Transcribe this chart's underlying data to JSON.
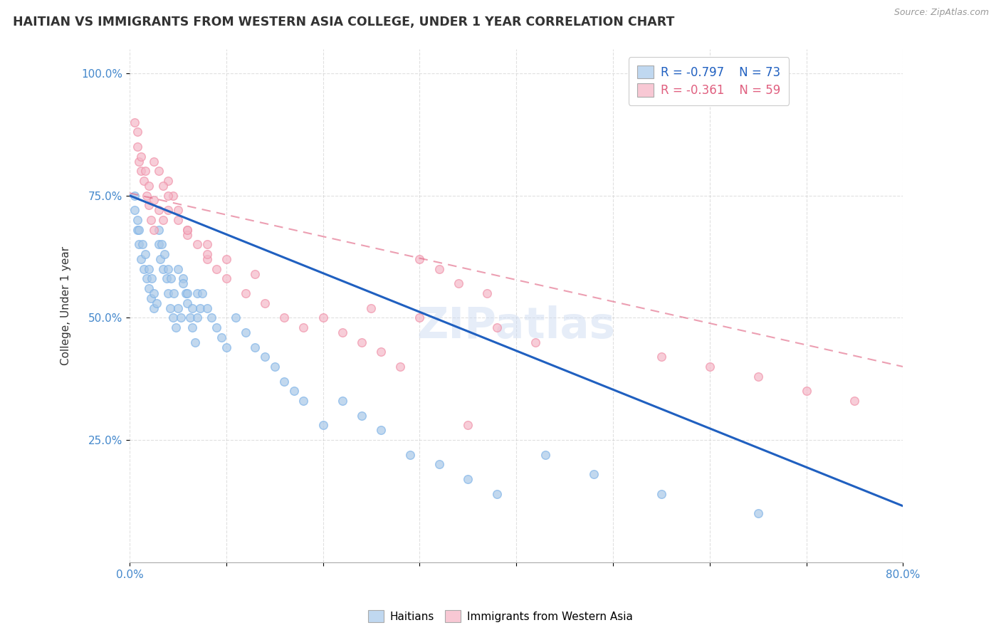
{
  "title": "HAITIAN VS IMMIGRANTS FROM WESTERN ASIA COLLEGE, UNDER 1 YEAR CORRELATION CHART",
  "ylabel": "College, Under 1 year",
  "source": "Source: ZipAtlas.com",
  "xmin": 0.0,
  "xmax": 0.8,
  "ymin": 0.0,
  "ymax": 1.05,
  "legend_r1": "R = -0.797",
  "legend_n1": "N = 73",
  "legend_r2": "R = -0.361",
  "legend_n2": "N = 59",
  "blue_color": "#A8C8E8",
  "blue_edge": "#7EB3E8",
  "pink_color": "#F4B8C8",
  "pink_edge": "#F090A8",
  "blue_line_color": "#2060C0",
  "pink_line_color": "#E06080",
  "watermark": "ZIPatlas",
  "blue_x": [
    0.005,
    0.008,
    0.01,
    0.012,
    0.015,
    0.018,
    0.02,
    0.022,
    0.025,
    0.005,
    0.008,
    0.01,
    0.013,
    0.016,
    0.02,
    0.023,
    0.025,
    0.028,
    0.03,
    0.032,
    0.035,
    0.038,
    0.04,
    0.042,
    0.045,
    0.048,
    0.03,
    0.033,
    0.036,
    0.04,
    0.043,
    0.046,
    0.05,
    0.053,
    0.055,
    0.058,
    0.06,
    0.063,
    0.065,
    0.068,
    0.07,
    0.073,
    0.05,
    0.055,
    0.06,
    0.065,
    0.07,
    0.075,
    0.08,
    0.085,
    0.09,
    0.095,
    0.1,
    0.11,
    0.12,
    0.13,
    0.14,
    0.15,
    0.16,
    0.17,
    0.18,
    0.2,
    0.22,
    0.24,
    0.26,
    0.29,
    0.32,
    0.35,
    0.38,
    0.43,
    0.48,
    0.55,
    0.65
  ],
  "blue_y": [
    0.72,
    0.68,
    0.65,
    0.62,
    0.6,
    0.58,
    0.56,
    0.54,
    0.52,
    0.75,
    0.7,
    0.68,
    0.65,
    0.63,
    0.6,
    0.58,
    0.55,
    0.53,
    0.65,
    0.62,
    0.6,
    0.58,
    0.55,
    0.52,
    0.5,
    0.48,
    0.68,
    0.65,
    0.63,
    0.6,
    0.58,
    0.55,
    0.52,
    0.5,
    0.58,
    0.55,
    0.53,
    0.5,
    0.48,
    0.45,
    0.55,
    0.52,
    0.6,
    0.57,
    0.55,
    0.52,
    0.5,
    0.55,
    0.52,
    0.5,
    0.48,
    0.46,
    0.44,
    0.5,
    0.47,
    0.44,
    0.42,
    0.4,
    0.37,
    0.35,
    0.33,
    0.28,
    0.33,
    0.3,
    0.27,
    0.22,
    0.2,
    0.17,
    0.14,
    0.22,
    0.18,
    0.14,
    0.1
  ],
  "pink_x": [
    0.005,
    0.008,
    0.01,
    0.012,
    0.015,
    0.018,
    0.02,
    0.022,
    0.025,
    0.008,
    0.012,
    0.016,
    0.02,
    0.025,
    0.03,
    0.035,
    0.04,
    0.045,
    0.05,
    0.06,
    0.07,
    0.08,
    0.09,
    0.025,
    0.03,
    0.035,
    0.04,
    0.05,
    0.06,
    0.08,
    0.1,
    0.12,
    0.14,
    0.16,
    0.18,
    0.2,
    0.22,
    0.24,
    0.26,
    0.28,
    0.3,
    0.32,
    0.34,
    0.37,
    0.04,
    0.06,
    0.08,
    0.1,
    0.13,
    0.25,
    0.3,
    0.38,
    0.42,
    0.35,
    0.55,
    0.6,
    0.65,
    0.7,
    0.75
  ],
  "pink_y": [
    0.9,
    0.85,
    0.82,
    0.8,
    0.78,
    0.75,
    0.73,
    0.7,
    0.68,
    0.88,
    0.83,
    0.8,
    0.77,
    0.74,
    0.72,
    0.7,
    0.78,
    0.75,
    0.72,
    0.68,
    0.65,
    0.62,
    0.6,
    0.82,
    0.8,
    0.77,
    0.75,
    0.7,
    0.67,
    0.63,
    0.58,
    0.55,
    0.53,
    0.5,
    0.48,
    0.5,
    0.47,
    0.45,
    0.43,
    0.4,
    0.62,
    0.6,
    0.57,
    0.55,
    0.72,
    0.68,
    0.65,
    0.62,
    0.59,
    0.52,
    0.5,
    0.48,
    0.45,
    0.28,
    0.42,
    0.4,
    0.38,
    0.35,
    0.33
  ]
}
